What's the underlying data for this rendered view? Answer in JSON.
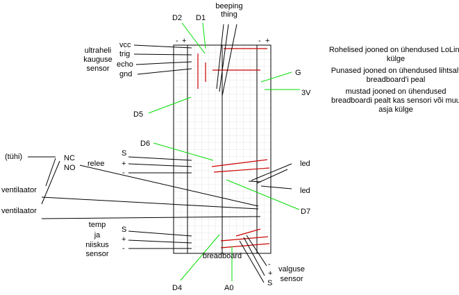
{
  "labels": {
    "d2": "D2",
    "d1": "D1",
    "beeping_line1": "beeping",
    "beeping_line2": "thing",
    "minus_left": "-",
    "plus_left": "+",
    "minus_right": "-",
    "plus_right": "+",
    "sensor_line1": "ultraheli",
    "sensor_line2": "kauguse",
    "sensor_line3": "sensor",
    "vcc": "vcc",
    "trig": "trig",
    "echo": "echo",
    "gnd": "gnd",
    "g": "G",
    "v3": "3V",
    "d5": "D5",
    "d6": "D6",
    "tyhi": "(tühi)",
    "nc": "NC",
    "no": "NO",
    "relee": "relee",
    "relee_s": "S",
    "relee_plus": "+",
    "relee_minus": "-",
    "led1": "led",
    "led2": "led",
    "vent1": "ventilaator",
    "vent2": "ventilaator",
    "d7": "D7",
    "temp_line1": "temp",
    "temp_line2": "ja",
    "temp_line3": "niiskus",
    "temp_line4": "sensor",
    "temp_s": "S",
    "temp_plus": "+",
    "temp_minus": "-",
    "breadboard": "breadboard",
    "valgus_minus": "-",
    "valgus_plus": "+",
    "valgus_s": "S",
    "valgus_line1": "valguse",
    "valgus_line2": "sensor",
    "d4": "D4",
    "a0": "A0"
  },
  "notes": [
    "Rohelised jooned on ühendused LoLin'i külge",
    "Punased jooned on ühendused lihtsalt breadboard'i peal",
    "mustad jooned on ühendused breadboardi pealt kas sensori või muu asja külge"
  ],
  "colors": {
    "green": "#00dd00",
    "red": "#cc0000",
    "black": "#000000",
    "grid": "#e6e6e6"
  }
}
